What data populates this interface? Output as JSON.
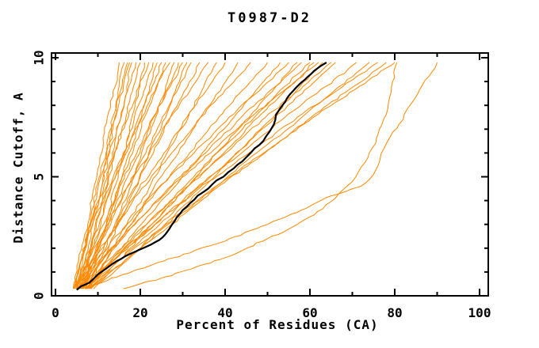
{
  "chart_data": {
    "type": "line",
    "title": "T0987-D2",
    "xlabel": "Percent of Residues (CA)",
    "ylabel": "Distance Cutoff, A",
    "xlim": [
      0,
      100
    ],
    "ylim": [
      0,
      10
    ],
    "x_major_ticks": [
      0,
      20,
      40,
      60,
      80,
      100
    ],
    "x_minor_tick_step": 10,
    "y_major_ticks": [
      0,
      5,
      10
    ],
    "y_minor_tick_step": 1,
    "grid": false,
    "legend": "none",
    "model_color": "#ff8800",
    "highlight_color": "#000000",
    "frame_color": "#000000",
    "cutoff_levels": [
      0.3,
      1.5,
      3,
      4.5,
      6,
      7.5,
      8.8,
      9.8
    ],
    "model_percent_curves": [
      [
        4.3,
        5.5,
        7.6,
        9.0,
        10.9,
        12.2,
        14.1,
        15.0
      ],
      [
        5.0,
        7.2,
        8.8,
        10.8,
        12.1,
        14.0,
        15.0,
        16.2
      ],
      [
        5.3,
        6.1,
        8.1,
        9.5,
        11.9,
        13.5,
        15.7,
        17.0
      ],
      [
        4.5,
        6.0,
        8.3,
        10.0,
        12.5,
        14.2,
        16.0,
        17.5
      ],
      [
        6.0,
        7.9,
        9.6,
        11.8,
        13.4,
        15.5,
        16.8,
        18.0
      ],
      [
        4.8,
        6.4,
        8.2,
        10.8,
        12.8,
        15.4,
        17.3,
        19.0
      ],
      [
        5.4,
        7.5,
        9.4,
        12.0,
        14.0,
        16.6,
        18.4,
        20.0
      ],
      [
        7.0,
        9.1,
        12.0,
        13.8,
        16.3,
        18.0,
        19.9,
        21.0
      ],
      [
        4.2,
        6.0,
        8.2,
        11.3,
        13.8,
        17.2,
        19.7,
        22.0
      ],
      [
        5.6,
        7.7,
        10.7,
        13.1,
        16.2,
        18.6,
        21.3,
        23.0
      ],
      [
        6.7,
        9.5,
        12.0,
        15.0,
        17.4,
        20.3,
        22.2,
        24.0
      ],
      [
        5.0,
        7.0,
        10.3,
        13.0,
        16.7,
        19.6,
        22.8,
        25.0
      ],
      [
        6.2,
        8.5,
        12.0,
        14.7,
        18.2,
        21.0,
        24.0,
        26.0
      ],
      [
        4.2,
        6.1,
        8.7,
        12.6,
        16.0,
        20.4,
        23.8,
        27.0
      ],
      [
        7.0,
        10.6,
        14.0,
        17.5,
        20.3,
        23.6,
        26.0,
        28.0
      ],
      [
        5.8,
        8.6,
        12.5,
        15.8,
        19.9,
        23.2,
        26.7,
        29.0
      ],
      [
        5.0,
        7.4,
        11.3,
        14.8,
        19.2,
        23.0,
        27.1,
        30.0
      ],
      [
        7.5,
        11.2,
        14.8,
        18.8,
        22.0,
        26.0,
        28.6,
        31.0
      ],
      [
        5.8,
        8.7,
        13.0,
        16.7,
        21.3,
        25.2,
        29.2,
        32.0
      ],
      [
        6.4,
        9.8,
        14.4,
        18.4,
        23.1,
        27.1,
        31.2,
        34.0
      ],
      [
        5.0,
        7.7,
        12.3,
        16.7,
        22.2,
        27.1,
        32.3,
        36.0
      ],
      [
        7.3,
        12.0,
        16.8,
        22.0,
        26.3,
        31.3,
        35.0,
        38.0
      ],
      [
        5.8,
        9.3,
        14.7,
        19.7,
        25.6,
        31.0,
        36.2,
        40.0
      ],
      [
        7.6,
        12.0,
        17.9,
        23.1,
        29.0,
        34.2,
        39.4,
        43.0
      ],
      [
        5.5,
        8.8,
        14.5,
        20.3,
        27.4,
        34.2,
        41.0,
        46.0
      ],
      [
        6.5,
        11.0,
        17.8,
        24.2,
        31.6,
        38.5,
        45.1,
        50.0
      ],
      [
        7.4,
        13.3,
        20.2,
        27.7,
        34.6,
        42.1,
        48.1,
        53.0
      ],
      [
        5.3,
        9.7,
        16.9,
        24.1,
        32.7,
        40.9,
        49.0,
        55.0
      ],
      [
        8.2,
        15.1,
        22.7,
        30.7,
        38.0,
        45.7,
        52.0,
        57.0
      ],
      [
        6.0,
        11.0,
        18.8,
        26.5,
        35.4,
        43.8,
        51.9,
        58.0
      ],
      [
        7.4,
        13.7,
        21.5,
        29.9,
        38.1,
        46.9,
        54.1,
        60.0
      ],
      [
        7.2,
        13.9,
        22.7,
        30.8,
        39.7,
        47.8,
        55.4,
        61.0
      ],
      [
        5.4,
        10.4,
        18.6,
        26.9,
        36.6,
        46.0,
        55.1,
        62.0
      ],
      [
        9.0,
        17.0,
        25.8,
        34.6,
        42.6,
        51.4,
        57.7,
        63.0
      ],
      [
        6.3,
        12.5,
        21.5,
        30.3,
        40.2,
        49.5,
        58.4,
        65.0
      ],
      [
        7.8,
        15.1,
        24.6,
        33.3,
        42.9,
        51.7,
        60.0,
        66.0
      ],
      [
        6.9,
        13.7,
        23.5,
        33.1,
        43.9,
        54.1,
        63.8,
        71.0
      ],
      [
        8.0,
        16.5,
        26.6,
        37.3,
        47.4,
        58.1,
        67.0,
        74.0
      ],
      [
        6.3,
        13.1,
        23.4,
        33.8,
        45.6,
        57.0,
        67.8,
        76.0
      ],
      [
        8.4,
        16.4,
        27.4,
        37.8,
        49.4,
        60.3,
        70.4,
        78.0
      ],
      [
        7.1,
        14.9,
        26.0,
        37.0,
        49.1,
        60.8,
        71.7,
        80.0
      ]
    ],
    "extra_model_curves": [
      [
        [
          7,
          0.3
        ],
        [
          16,
          0.9
        ],
        [
          28,
          1.6
        ],
        [
          40,
          2.3
        ],
        [
          50,
          3.0
        ],
        [
          58,
          3.6
        ],
        [
          65,
          4.2
        ],
        [
          72,
          4.6
        ],
        [
          75,
          5.1
        ],
        [
          76.5,
          5.7
        ],
        [
          77.5,
          6.2
        ],
        [
          79,
          6.7
        ],
        [
          81,
          7.2
        ],
        [
          84,
          8.1
        ],
        [
          86,
          8.7
        ],
        [
          88,
          9.2
        ],
        [
          90,
          9.8
        ]
      ],
      [
        [
          16,
          0.3
        ],
        [
          20,
          0.5
        ],
        [
          26,
          0.8
        ],
        [
          33,
          1.2
        ],
        [
          40,
          1.6
        ],
        [
          44,
          1.9
        ],
        [
          50,
          2.4
        ],
        [
          56,
          2.9
        ],
        [
          61,
          3.4
        ],
        [
          66,
          4.1
        ],
        [
          70,
          4.8
        ],
        [
          73,
          5.6
        ],
        [
          75.5,
          6.4
        ],
        [
          77,
          7.2
        ],
        [
          78.5,
          8.1
        ],
        [
          79.5,
          9.0
        ],
        [
          80.5,
          9.8
        ]
      ]
    ],
    "highlight_curve": [
      [
        5,
        0.25
      ],
      [
        6,
        0.4
      ],
      [
        8,
        0.55
      ],
      [
        10,
        0.9
      ],
      [
        12,
        1.15
      ],
      [
        13.5,
        1.35
      ],
      [
        15.5,
        1.55
      ],
      [
        17.5,
        1.75
      ],
      [
        20,
        1.95
      ],
      [
        22.5,
        2.15
      ],
      [
        24.5,
        2.35
      ],
      [
        26,
        2.6
      ],
      [
        27.5,
        3.0
      ],
      [
        28.6,
        3.3
      ],
      [
        30,
        3.6
      ],
      [
        31.8,
        3.9
      ],
      [
        33.5,
        4.2
      ],
      [
        36,
        4.5
      ],
      [
        38,
        4.85
      ],
      [
        39.6,
        5.0
      ],
      [
        42,
        5.35
      ],
      [
        44.9,
        5.8
      ],
      [
        47,
        6.2
      ],
      [
        49,
        6.5
      ],
      [
        50.5,
        6.9
      ],
      [
        51.5,
        7.2
      ],
      [
        52,
        7.6
      ],
      [
        53.5,
        8.0
      ],
      [
        54.6,
        8.3
      ],
      [
        56,
        8.6
      ],
      [
        57.9,
        8.95
      ],
      [
        59.5,
        9.2
      ],
      [
        61,
        9.45
      ],
      [
        62.5,
        9.65
      ],
      [
        63.9,
        9.8
      ]
    ]
  }
}
